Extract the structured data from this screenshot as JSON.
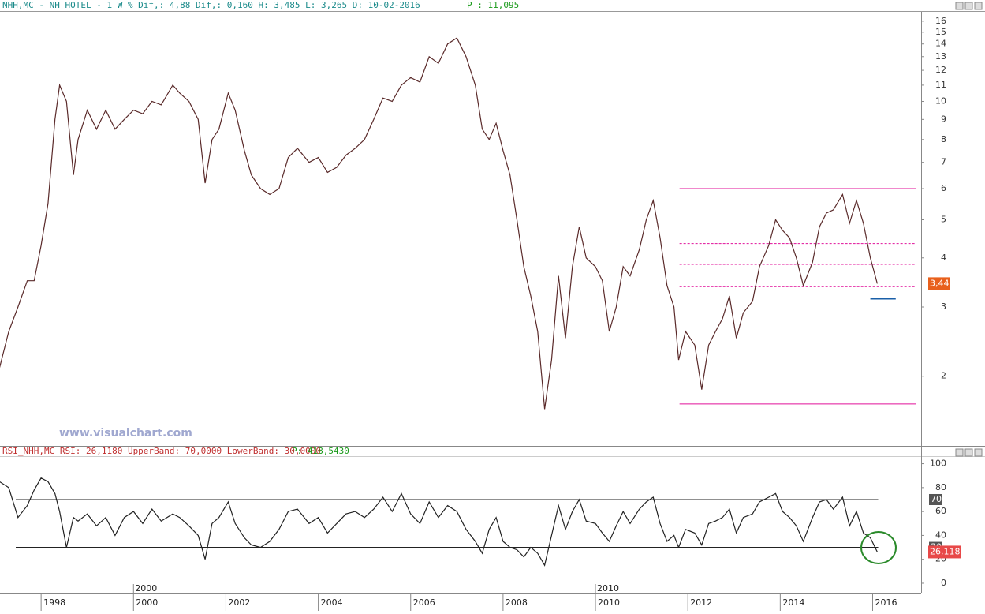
{
  "header": {
    "info": "NHH,MC - NH HOTEL -  1 W % Dif,: 4,88 Dif,: 0,160 H: 3,485 L: 3,265 D: 10-02-2016",
    "p": "P : 11,095"
  },
  "rsi_header": {
    "info": "RSI_NHH,MC RSI: 26,1180 UpperBand: 70,0000 LowerBand: 30,0000",
    "p": "P: 418,5430"
  },
  "watermark": "www.visualchart.com",
  "chart_data": [
    {
      "type": "line",
      "log_scale": true,
      "last_value_label": "3,44",
      "x": [
        1997.1,
        1997.3,
        1997.5,
        1997.7,
        1997.85,
        1998.0,
        1998.15,
        1998.3,
        1998.4,
        1998.55,
        1998.7,
        1998.8,
        1999.0,
        1999.2,
        1999.4,
        1999.6,
        1999.8,
        2000.0,
        2000.2,
        2000.4,
        2000.6,
        2000.85,
        2001.0,
        2001.2,
        2001.4,
        2001.55,
        2001.7,
        2001.85,
        2002.05,
        2002.2,
        2002.4,
        2002.55,
        2002.75,
        2002.95,
        2003.15,
        2003.35,
        2003.55,
        2003.8,
        2004.0,
        2004.2,
        2004.4,
        2004.6,
        2004.8,
        2005.0,
        2005.2,
        2005.4,
        2005.6,
        2005.8,
        2006.0,
        2006.2,
        2006.4,
        2006.6,
        2006.8,
        2007.0,
        2007.2,
        2007.4,
        2007.55,
        2007.7,
        2007.85,
        2008.0,
        2008.15,
        2008.3,
        2008.45,
        2008.6,
        2008.75,
        2008.9,
        2009.05,
        2009.2,
        2009.35,
        2009.5,
        2009.65,
        2009.8,
        2010.0,
        2010.15,
        2010.3,
        2010.45,
        2010.6,
        2010.75,
        2010.95,
        2011.1,
        2011.25,
        2011.4,
        2011.55,
        2011.7,
        2011.8,
        2011.95,
        2012.15,
        2012.3,
        2012.45,
        2012.6,
        2012.75,
        2012.9,
        2013.05,
        2013.2,
        2013.4,
        2013.55,
        2013.75,
        2013.9,
        2014.05,
        2014.2,
        2014.35,
        2014.5,
        2014.7,
        2014.85,
        2015.0,
        2015.15,
        2015.35,
        2015.5,
        2015.65,
        2015.8,
        2015.95,
        2016.1
      ],
      "series": [
        {
          "color": "#5a2a2a",
          "values": [
            2.1,
            2.6,
            3.0,
            3.5,
            3.5,
            4.3,
            5.5,
            9.0,
            11.0,
            10.0,
            6.5,
            8.0,
            9.5,
            8.5,
            9.5,
            8.5,
            9.0,
            9.5,
            9.3,
            10.0,
            9.8,
            11.0,
            10.5,
            10.0,
            9.0,
            6.2,
            8.0,
            8.5,
            10.5,
            9.5,
            7.5,
            6.5,
            6.0,
            5.8,
            6.0,
            7.2,
            7.6,
            7.0,
            7.2,
            6.6,
            6.8,
            7.3,
            7.6,
            8.0,
            9.0,
            10.2,
            10.0,
            11.0,
            11.5,
            11.2,
            13.0,
            12.5,
            14.0,
            14.5,
            13.0,
            11.0,
            8.5,
            8.0,
            8.8,
            7.5,
            6.5,
            5.0,
            3.8,
            3.2,
            2.6,
            1.65,
            2.2,
            3.6,
            2.5,
            3.8,
            4.8,
            4.0,
            3.8,
            3.5,
            2.6,
            3.0,
            3.8,
            3.6,
            4.2,
            5.0,
            5.6,
            4.5,
            3.4,
            3.0,
            2.2,
            2.6,
            2.4,
            1.85,
            2.4,
            2.6,
            2.8,
            3.2,
            2.5,
            2.9,
            3.1,
            3.8,
            4.3,
            5.0,
            4.7,
            4.5,
            4.0,
            3.4,
            3.9,
            4.8,
            5.2,
            5.3,
            5.8,
            4.9,
            5.6,
            4.9,
            4.0,
            3.44
          ]
        }
      ],
      "xlim": [
        1997.11,
        2017.05
      ],
      "xticks": [
        1998,
        2000,
        2002,
        2004,
        2006,
        2008,
        2010,
        2012,
        2014,
        2016
      ],
      "decade_marks": [
        2000,
        2010
      ],
      "ylim": [
        1.33,
        16.9
      ],
      "yticks": [
        2,
        3,
        4,
        5,
        6,
        7,
        8,
        9,
        10,
        11,
        12,
        13,
        14,
        15,
        16
      ],
      "levels": [
        {
          "value": 6,
          "dashed": false,
          "color": "#e0109a"
        },
        {
          "value": 4.35,
          "dashed": true,
          "color": "#e0109a"
        },
        {
          "value": 3.85,
          "dashed": true,
          "color": "#e0109a"
        },
        {
          "value": 3.38,
          "dashed": true,
          "color": "#e0109a"
        },
        {
          "value": 1.7,
          "dashed": false,
          "color": "#e0109a"
        }
      ],
      "levels_from": 2011.82,
      "levels_to": 2016.94,
      "support": {
        "value": 3.15,
        "from": 2015.95,
        "to": 2016.5,
        "color": "#1a5fa8"
      }
    },
    {
      "type": "line",
      "last_value_label": "26,118",
      "x": [
        1997.1,
        1997.3,
        1997.5,
        1997.7,
        1997.85,
        1998.0,
        1998.15,
        1998.3,
        1998.4,
        1998.55,
        1998.7,
        1998.8,
        1999.0,
        1999.2,
        1999.4,
        1999.6,
        1999.8,
        2000.0,
        2000.2,
        2000.4,
        2000.6,
        2000.85,
        2001.0,
        2001.2,
        2001.4,
        2001.55,
        2001.7,
        2001.85,
        2002.05,
        2002.2,
        2002.4,
        2002.55,
        2002.75,
        2002.95,
        2003.15,
        2003.35,
        2003.55,
        2003.8,
        2004.0,
        2004.2,
        2004.4,
        2004.6,
        2004.8,
        2005.0,
        2005.2,
        2005.4,
        2005.6,
        2005.8,
        2006.0,
        2006.2,
        2006.4,
        2006.6,
        2006.8,
        2007.0,
        2007.2,
        2007.4,
        2007.55,
        2007.7,
        2007.85,
        2008.0,
        2008.15,
        2008.3,
        2008.45,
        2008.6,
        2008.75,
        2008.9,
        2009.05,
        2009.2,
        2009.35,
        2009.5,
        2009.65,
        2009.8,
        2010.0,
        2010.15,
        2010.3,
        2010.45,
        2010.6,
        2010.75,
        2010.95,
        2011.1,
        2011.25,
        2011.4,
        2011.55,
        2011.7,
        2011.8,
        2011.95,
        2012.15,
        2012.3,
        2012.45,
        2012.6,
        2012.75,
        2012.9,
        2013.05,
        2013.2,
        2013.4,
        2013.55,
        2013.75,
        2013.9,
        2014.05,
        2014.2,
        2014.35,
        2014.5,
        2014.7,
        2014.85,
        2015.0,
        2015.15,
        2015.35,
        2015.5,
        2015.65,
        2015.8,
        2015.95,
        2016.1
      ],
      "series": [
        {
          "color": "#222222",
          "values": [
            85,
            80,
            55,
            65,
            78,
            88,
            85,
            75,
            60,
            30,
            55,
            52,
            58,
            48,
            55,
            40,
            55,
            60,
            50,
            62,
            52,
            58,
            55,
            48,
            40,
            20,
            50,
            55,
            68,
            50,
            38,
            32,
            30,
            35,
            45,
            60,
            62,
            50,
            55,
            42,
            50,
            58,
            60,
            55,
            62,
            72,
            60,
            75,
            58,
            50,
            68,
            55,
            65,
            60,
            45,
            35,
            25,
            45,
            55,
            35,
            30,
            28,
            22,
            30,
            25,
            15,
            40,
            65,
            45,
            60,
            70,
            52,
            50,
            42,
            35,
            48,
            60,
            50,
            62,
            68,
            72,
            50,
            35,
            40,
            30,
            45,
            42,
            32,
            50,
            52,
            55,
            62,
            42,
            55,
            58,
            68,
            72,
            75,
            60,
            55,
            48,
            35,
            55,
            68,
            70,
            62,
            72,
            48,
            60,
            42,
            38,
            26.118
          ]
        }
      ],
      "xlim": [
        1997.11,
        2017.05
      ],
      "ylim": [
        -8.6,
        105
      ],
      "yticks": [
        0,
        20,
        40,
        60,
        80,
        100
      ],
      "bands": [
        70,
        30
      ],
      "band_to": 2016.12
    }
  ]
}
